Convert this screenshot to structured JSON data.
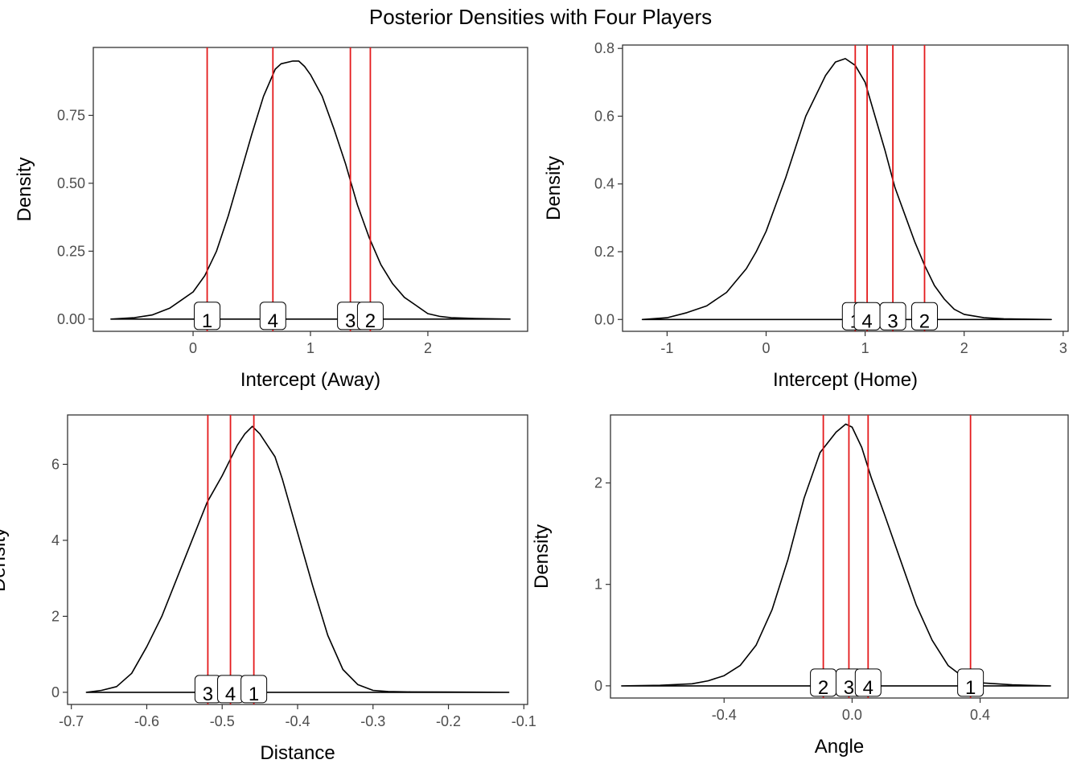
{
  "title": "Posterior Densities with Four Players",
  "colors": {
    "density": "#000000",
    "vline": "#e41a1c",
    "label_bg": "#ffffff",
    "axis_text": "#4d4d4d"
  },
  "chart_data": [
    {
      "type": "line",
      "xlabel": "Intercept (Away)",
      "ylabel": "Density",
      "xlim": [
        -0.85,
        2.85
      ],
      "ylim": [
        -0.045,
        1.0
      ],
      "xticks": [
        0,
        1,
        2
      ],
      "xtick_labels": [
        "0",
        "1",
        "2"
      ],
      "yticks": [
        0,
        0.25,
        0.5,
        0.75
      ],
      "ytick_labels": [
        "0.00",
        "0.25",
        "0.50",
        "0.75"
      ],
      "grid": false,
      "density": {
        "x": [
          -0.7,
          -0.5,
          -0.35,
          -0.2,
          -0.1,
          0.0,
          0.1,
          0.2,
          0.3,
          0.4,
          0.5,
          0.6,
          0.7,
          0.75,
          0.85,
          0.9,
          0.95,
          1.0,
          1.1,
          1.2,
          1.3,
          1.4,
          1.5,
          1.6,
          1.7,
          1.8,
          1.9,
          2.0,
          2.1,
          2.2,
          2.4,
          2.7
        ],
        "y": [
          0.0,
          0.005,
          0.015,
          0.04,
          0.07,
          0.1,
          0.16,
          0.25,
          0.38,
          0.53,
          0.68,
          0.82,
          0.92,
          0.94,
          0.95,
          0.95,
          0.93,
          0.9,
          0.82,
          0.7,
          0.57,
          0.42,
          0.3,
          0.2,
          0.13,
          0.08,
          0.05,
          0.02,
          0.01,
          0.005,
          0.002,
          0.0
        ]
      },
      "players": [
        {
          "label": "1",
          "value": 0.12
        },
        {
          "label": "4",
          "value": 0.68
        },
        {
          "label": "3",
          "value": 1.34
        },
        {
          "label": "2",
          "value": 1.51
        }
      ]
    },
    {
      "type": "line",
      "xlabel": "Intercept (Home)",
      "ylabel": "Density",
      "xlim": [
        -1.45,
        3.05
      ],
      "ylim": [
        -0.035,
        0.81
      ],
      "xticks": [
        -1,
        0,
        1,
        2,
        3
      ],
      "xtick_labels": [
        "-1",
        "0",
        "1",
        "2",
        "3"
      ],
      "yticks": [
        0,
        0.2,
        0.4,
        0.6,
        0.8
      ],
      "ytick_labels": [
        "0.0",
        "0.2",
        "0.4",
        "0.6",
        "0.8"
      ],
      "grid": false,
      "density": {
        "x": [
          -1.25,
          -1.0,
          -0.8,
          -0.6,
          -0.4,
          -0.2,
          -0.1,
          0.0,
          0.1,
          0.2,
          0.3,
          0.4,
          0.5,
          0.6,
          0.7,
          0.8,
          0.9,
          1.0,
          1.1,
          1.2,
          1.3,
          1.4,
          1.5,
          1.6,
          1.7,
          1.8,
          1.9,
          2.0,
          2.2,
          2.4,
          2.6,
          2.88
        ],
        "y": [
          0.0,
          0.005,
          0.02,
          0.04,
          0.08,
          0.15,
          0.2,
          0.26,
          0.34,
          0.42,
          0.51,
          0.6,
          0.66,
          0.72,
          0.76,
          0.77,
          0.75,
          0.7,
          0.6,
          0.5,
          0.39,
          0.31,
          0.23,
          0.16,
          0.1,
          0.06,
          0.03,
          0.015,
          0.005,
          0.002,
          0.001,
          0.0
        ]
      },
      "players": [
        {
          "label": "1",
          "value": 0.9
        },
        {
          "label": "4",
          "value": 1.02
        },
        {
          "label": "3",
          "value": 1.28
        },
        {
          "label": "2",
          "value": 1.6
        }
      ]
    },
    {
      "type": "line",
      "xlabel": "Distance",
      "ylabel": "Density",
      "xlim": [
        -0.705,
        -0.095
      ],
      "ylim": [
        -0.32,
        7.3
      ],
      "xticks": [
        -0.7,
        -0.6,
        -0.5,
        -0.4,
        -0.3,
        -0.2,
        -0.1
      ],
      "xtick_labels": [
        "-0.7",
        "-0.6",
        "-0.5",
        "-0.4",
        "-0.3",
        "-0.2",
        "-0.1"
      ],
      "yticks": [
        0,
        2,
        4,
        6
      ],
      "ytick_labels": [
        "0",
        "2",
        "4",
        "6"
      ],
      "grid": false,
      "density": {
        "x": [
          -0.68,
          -0.66,
          -0.64,
          -0.62,
          -0.6,
          -0.58,
          -0.56,
          -0.54,
          -0.52,
          -0.5,
          -0.49,
          -0.48,
          -0.47,
          -0.46,
          -0.45,
          -0.44,
          -0.43,
          -0.42,
          -0.4,
          -0.38,
          -0.36,
          -0.34,
          -0.32,
          -0.3,
          -0.28,
          -0.25,
          -0.2,
          -0.12
        ],
        "y": [
          0.0,
          0.05,
          0.15,
          0.5,
          1.2,
          2.0,
          3.0,
          4.0,
          5.0,
          5.7,
          6.1,
          6.5,
          6.8,
          7.0,
          6.8,
          6.5,
          6.2,
          5.6,
          4.2,
          2.8,
          1.5,
          0.6,
          0.2,
          0.05,
          0.02,
          0.01,
          0.005,
          0.0
        ]
      },
      "players": [
        {
          "label": "3",
          "value": -0.519
        },
        {
          "label": "4",
          "value": -0.489
        },
        {
          "label": "1",
          "value": -0.458
        }
      ]
    },
    {
      "type": "line",
      "xlabel": "Angle",
      "ylabel": "Density",
      "xlim": [
        -0.755,
        0.675
      ],
      "ylim": [
        -0.12,
        2.67
      ],
      "xticks": [
        -0.4,
        0.0,
        0.4
      ],
      "xtick_labels": [
        "-0.4",
        "0.0",
        "0.4"
      ],
      "yticks": [
        0,
        1,
        2
      ],
      "ytick_labels": [
        "0",
        "1",
        "2"
      ],
      "grid": false,
      "density": {
        "x": [
          -0.72,
          -0.6,
          -0.5,
          -0.45,
          -0.4,
          -0.35,
          -0.3,
          -0.25,
          -0.2,
          -0.15,
          -0.1,
          -0.05,
          -0.02,
          0.0,
          0.03,
          0.06,
          0.1,
          0.15,
          0.2,
          0.25,
          0.3,
          0.35,
          0.4,
          0.45,
          0.5,
          0.55,
          0.62
        ],
        "y": [
          0.0,
          0.005,
          0.02,
          0.05,
          0.1,
          0.2,
          0.4,
          0.75,
          1.25,
          1.85,
          2.3,
          2.5,
          2.58,
          2.55,
          2.35,
          2.05,
          1.7,
          1.25,
          0.8,
          0.45,
          0.2,
          0.08,
          0.03,
          0.02,
          0.01,
          0.005,
          0.0
        ]
      },
      "players": [
        {
          "label": "2",
          "value": -0.09
        },
        {
          "label": "3",
          "value": -0.01
        },
        {
          "label": "4",
          "value": 0.05
        },
        {
          "label": "1",
          "value": 0.37
        }
      ]
    }
  ]
}
